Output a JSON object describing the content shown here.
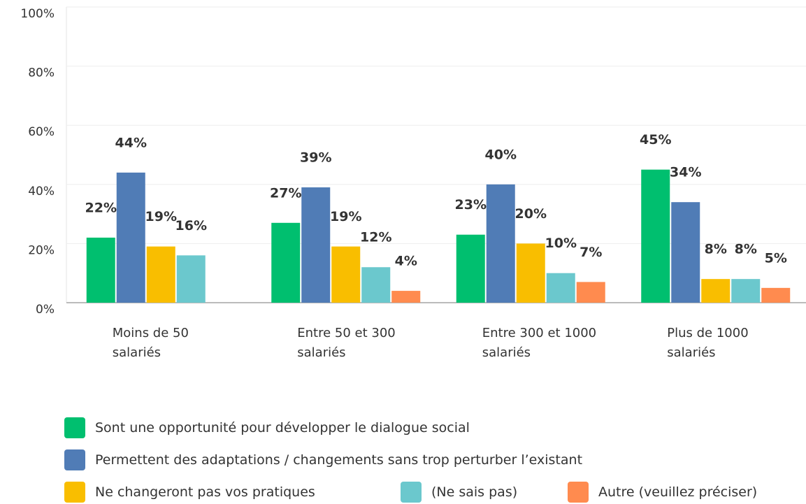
{
  "chart_data": {
    "type": "bar",
    "categories": [
      "Moins de 50 salariés",
      "Entre 50 et 300 salariés",
      "Entre 300 et 1000 salariés",
      "Plus de 1000 salariés"
    ],
    "series": [
      {
        "name": "Sont une opportunité pour développer le dialogue social",
        "color": "#00bf6f",
        "values": [
          22,
          27,
          23,
          45
        ],
        "value_labels": [
          "22%",
          "27%",
          "23%",
          "45%"
        ]
      },
      {
        "name": "Permettent des adaptations / changements sans trop perturber l’existant",
        "color": "#507cb6",
        "values": [
          44,
          39,
          40,
          34
        ],
        "value_labels": [
          "44%",
          "39%",
          "40%",
          "34%"
        ]
      },
      {
        "name": "Ne changeront pas vos pratiques",
        "color": "#f9be00",
        "values": [
          19,
          19,
          20,
          8
        ],
        "value_labels": [
          "19%",
          "19%",
          "20%",
          "8%"
        ]
      },
      {
        "name": "(Ne sais pas)",
        "color": "#6bc8cd",
        "values": [
          16,
          12,
          10,
          8
        ],
        "value_labels": [
          "16%",
          "12%",
          "10%",
          "8%"
        ]
      },
      {
        "name": "Autre (veuillez préciser)",
        "color": "#ff8b4f",
        "values": [
          null,
          4,
          7,
          5
        ],
        "value_labels": [
          null,
          "4%",
          "7%",
          "5%"
        ]
      }
    ],
    "ylim": [
      0,
      100
    ],
    "yticks": [
      {
        "value": 0,
        "label": "0%"
      },
      {
        "value": 20,
        "label": "20%"
      },
      {
        "value": 40,
        "label": "40%"
      },
      {
        "value": 60,
        "label": "60%"
      },
      {
        "value": 80,
        "label": "80%"
      },
      {
        "value": 100,
        "label": "100%"
      }
    ],
    "grid": true
  }
}
